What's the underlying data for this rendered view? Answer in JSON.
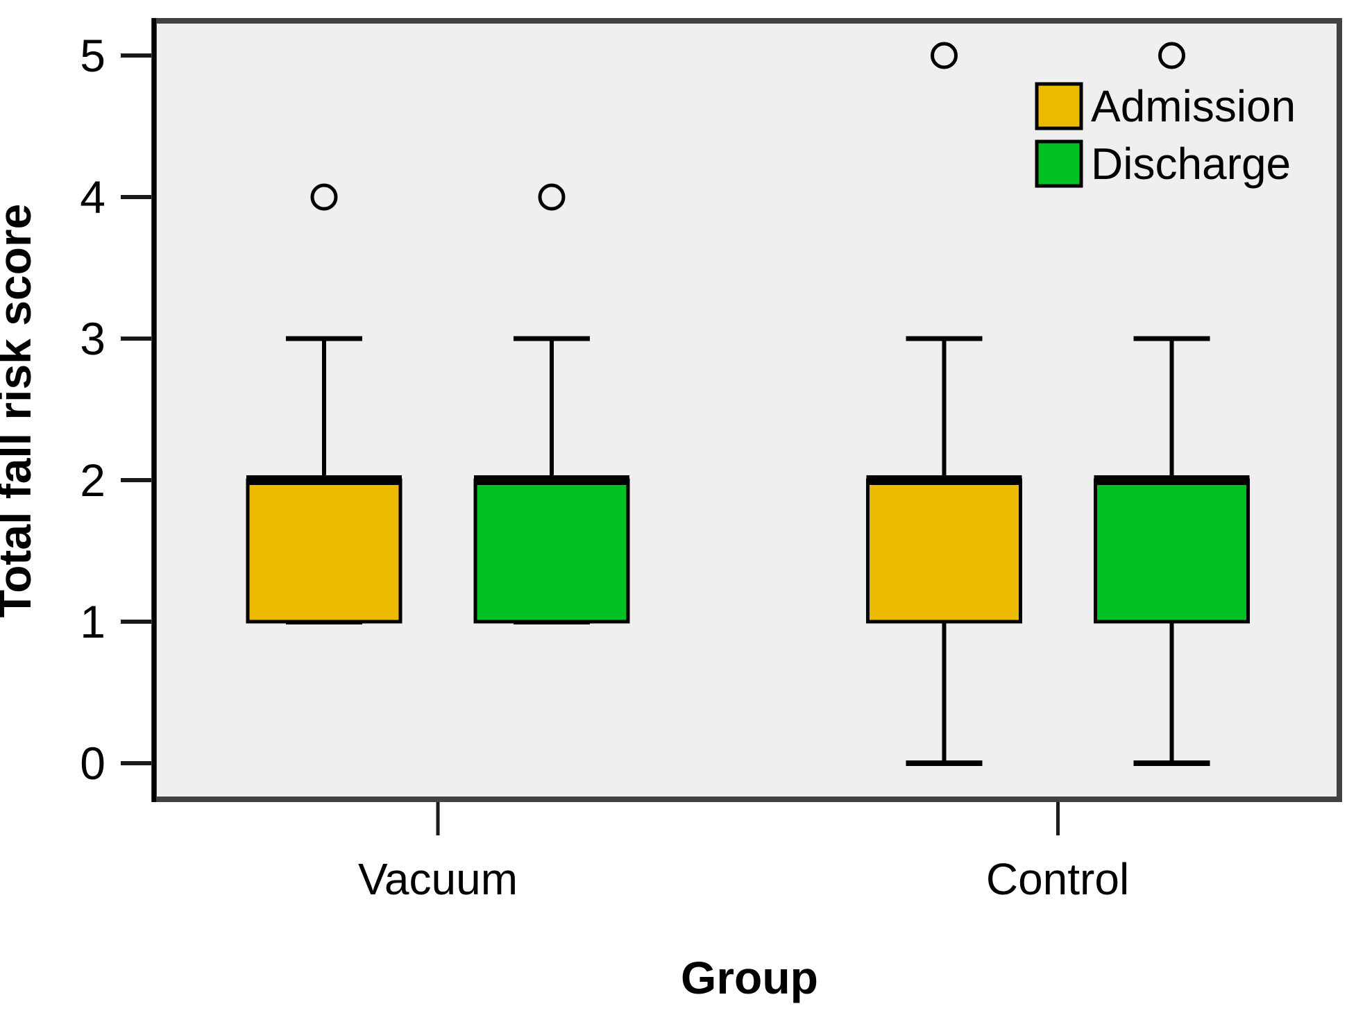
{
  "chart_data": {
    "type": "boxplot",
    "title": "",
    "xlabel": "Group",
    "ylabel": "Total fall risk score",
    "categories": [
      "Vacuum",
      "Control"
    ],
    "yticks": [
      0,
      1,
      2,
      3,
      4,
      5
    ],
    "ylim": [
      -0.35,
      5.25
    ],
    "grid": false,
    "legend_position": "top-right",
    "plot_background": "#EFEFEF",
    "frame_color": "#424242",
    "series": [
      {
        "name": "Admission",
        "color": "#ECBA00",
        "boxes": [
          {
            "group": "Vacuum",
            "q1": 1,
            "median": 2,
            "q3": 2,
            "whisker_low": 1,
            "whisker_high": 3,
            "outliers": [
              4
            ]
          },
          {
            "group": "Control",
            "q1": 1,
            "median": 2,
            "q3": 2,
            "whisker_low": 0,
            "whisker_high": 3,
            "outliers": [
              5
            ]
          }
        ]
      },
      {
        "name": "Discharge",
        "color": "#00C122",
        "boxes": [
          {
            "group": "Vacuum",
            "q1": 1,
            "median": 2,
            "q3": 2,
            "whisker_low": 1,
            "whisker_high": 3,
            "outliers": [
              4
            ]
          },
          {
            "group": "Control",
            "q1": 1,
            "median": 2,
            "q3": 2,
            "whisker_low": 0,
            "whisker_high": 3,
            "outliers": [
              5
            ]
          }
        ]
      }
    ]
  }
}
